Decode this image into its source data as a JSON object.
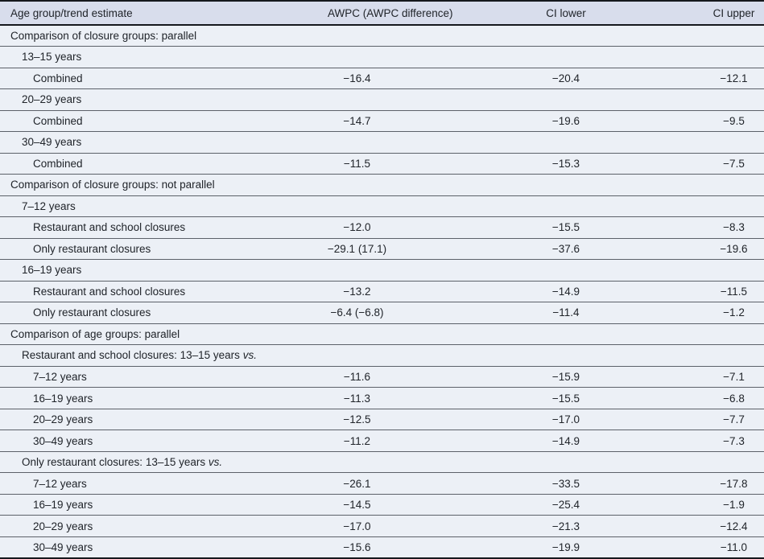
{
  "colors": {
    "header_background": "#d8ddec",
    "row_background": "#ecf0f6",
    "heavy_border": "#15181d",
    "row_border": "#5c6169",
    "text": "#20242a"
  },
  "table": {
    "columns": [
      {
        "label": "Age group/trend estimate"
      },
      {
        "label": "AWPC (AWPC difference)"
      },
      {
        "label": "CI lower"
      },
      {
        "label": "CI upper"
      }
    ],
    "rows": [
      {
        "label": "Comparison of closure groups: parallel",
        "indent": 0,
        "awpc": "",
        "ci_lower": "",
        "ci_upper": "",
        "italic_suffix": ""
      },
      {
        "label": "13–15 years",
        "indent": 1,
        "awpc": "",
        "ci_lower": "",
        "ci_upper": "",
        "italic_suffix": ""
      },
      {
        "label": "Combined",
        "indent": 2,
        "awpc": "−16.4",
        "ci_lower": "−20.4",
        "ci_upper": "−12.1",
        "italic_suffix": ""
      },
      {
        "label": "20–29 years",
        "indent": 1,
        "awpc": "",
        "ci_lower": "",
        "ci_upper": "",
        "italic_suffix": ""
      },
      {
        "label": "Combined",
        "indent": 2,
        "awpc": "−14.7",
        "ci_lower": "−19.6",
        "ci_upper": "−9.5",
        "italic_suffix": ""
      },
      {
        "label": "30–49 years",
        "indent": 1,
        "awpc": "",
        "ci_lower": "",
        "ci_upper": "",
        "italic_suffix": ""
      },
      {
        "label": "Combined",
        "indent": 2,
        "awpc": "−11.5",
        "ci_lower": "−15.3",
        "ci_upper": "−7.5",
        "italic_suffix": ""
      },
      {
        "label": "Comparison of closure groups: not parallel",
        "indent": 0,
        "awpc": "",
        "ci_lower": "",
        "ci_upper": "",
        "italic_suffix": ""
      },
      {
        "label": "7–12 years",
        "indent": 1,
        "awpc": "",
        "ci_lower": "",
        "ci_upper": "",
        "italic_suffix": ""
      },
      {
        "label": "Restaurant and school closures",
        "indent": 2,
        "awpc": "−12.0",
        "ci_lower": "−15.5",
        "ci_upper": "−8.3",
        "italic_suffix": ""
      },
      {
        "label": "Only restaurant closures",
        "indent": 2,
        "awpc": "−29.1 (17.1)",
        "ci_lower": "−37.6",
        "ci_upper": "−19.6",
        "italic_suffix": ""
      },
      {
        "label": "16–19 years",
        "indent": 1,
        "awpc": "",
        "ci_lower": "",
        "ci_upper": "",
        "italic_suffix": ""
      },
      {
        "label": "Restaurant and school closures",
        "indent": 2,
        "awpc": "−13.2",
        "ci_lower": "−14.9",
        "ci_upper": "−11.5",
        "italic_suffix": ""
      },
      {
        "label": "Only restaurant closures",
        "indent": 2,
        "awpc": "−6.4 (−6.8)",
        "ci_lower": "−11.4",
        "ci_upper": "−1.2",
        "italic_suffix": ""
      },
      {
        "label": "Comparison of age groups: parallel",
        "indent": 0,
        "awpc": "",
        "ci_lower": "",
        "ci_upper": "",
        "italic_suffix": ""
      },
      {
        "label": "Restaurant and school closures: 13–15 years",
        "indent": 1,
        "awpc": "",
        "ci_lower": "",
        "ci_upper": "",
        "italic_suffix": "vs."
      },
      {
        "label": "7–12 years",
        "indent": 2,
        "awpc": "−11.6",
        "ci_lower": "−15.9",
        "ci_upper": "−7.1",
        "italic_suffix": ""
      },
      {
        "label": "16–19 years",
        "indent": 2,
        "awpc": "−11.3",
        "ci_lower": "−15.5",
        "ci_upper": "−6.8",
        "italic_suffix": ""
      },
      {
        "label": "20–29 years",
        "indent": 2,
        "awpc": "−12.5",
        "ci_lower": "−17.0",
        "ci_upper": "−7.7",
        "italic_suffix": ""
      },
      {
        "label": "30–49 years",
        "indent": 2,
        "awpc": "−11.2",
        "ci_lower": "−14.9",
        "ci_upper": "−7.3",
        "italic_suffix": ""
      },
      {
        "label": "Only restaurant closures: 13–15 years",
        "indent": 1,
        "awpc": "",
        "ci_lower": "",
        "ci_upper": "",
        "italic_suffix": "vs."
      },
      {
        "label": "7–12 years",
        "indent": 2,
        "awpc": "−26.1",
        "ci_lower": "−33.5",
        "ci_upper": "−17.8",
        "italic_suffix": ""
      },
      {
        "label": "16–19 years",
        "indent": 2,
        "awpc": "−14.5",
        "ci_lower": "−25.4",
        "ci_upper": "−1.9",
        "italic_suffix": ""
      },
      {
        "label": "20–29 years",
        "indent": 2,
        "awpc": "−17.0",
        "ci_lower": "−21.3",
        "ci_upper": "−12.4",
        "italic_suffix": ""
      },
      {
        "label": "30–49 years",
        "indent": 2,
        "awpc": "−15.6",
        "ci_lower": "−19.9",
        "ci_upper": "−11.0",
        "italic_suffix": ""
      }
    ]
  }
}
